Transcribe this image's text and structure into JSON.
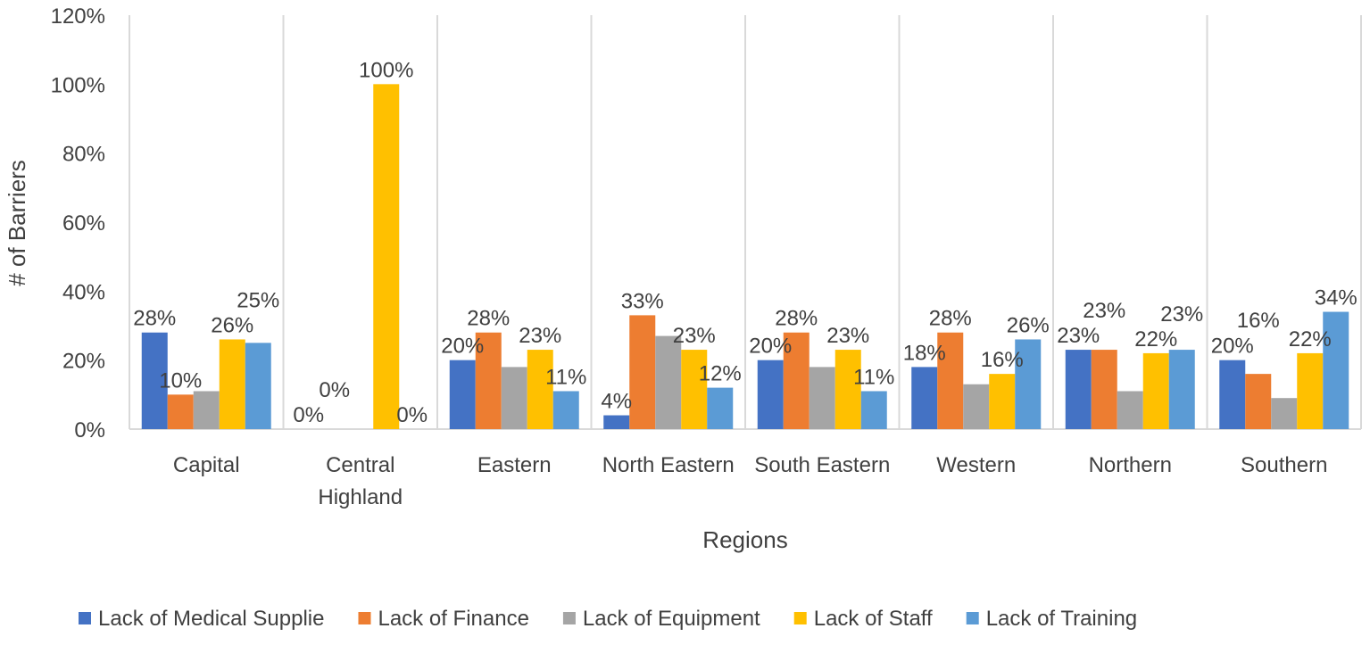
{
  "chart_data": {
    "type": "bar",
    "title": "",
    "xlabel": "Regions",
    "ylabel": "# of Barriers",
    "ylim": [
      0,
      120
    ],
    "yticks": [
      "0%",
      "20%",
      "40%",
      "60%",
      "80%",
      "100%",
      "120%"
    ],
    "grid": "vertical category separators",
    "legend_position": "bottom",
    "categories": [
      "Capital",
      "Central Highland",
      "Eastern",
      "North Eastern",
      "South Eastern",
      "Western",
      "Northern",
      "Southern"
    ],
    "series": [
      {
        "name": "Lack of Medical Supplie",
        "color": "#4472C4",
        "values": [
          28,
          0,
          20,
          4,
          20,
          18,
          23,
          20
        ],
        "labels": [
          "28%",
          "0%",
          "20%",
          "4%",
          "20%",
          "18%",
          "23%",
          "20%"
        ]
      },
      {
        "name": "Lack of Finance",
        "color": "#ED7D31",
        "values": [
          10,
          0,
          28,
          33,
          28,
          28,
          23,
          16
        ],
        "labels": [
          "10%",
          "0%",
          "28%",
          "33%",
          "28%",
          "28%",
          "23%",
          "16%"
        ]
      },
      {
        "name": "Lack of Equipment",
        "color": "#A5A5A5",
        "values": [
          11,
          0,
          18,
          27,
          18,
          13,
          11,
          9
        ],
        "labels": [
          null,
          null,
          null,
          null,
          null,
          null,
          null,
          null
        ]
      },
      {
        "name": "Lack of Staff",
        "color": "#FFC000",
        "values": [
          26,
          100,
          23,
          23,
          23,
          16,
          22,
          22
        ],
        "labels": [
          "26%",
          "100%",
          "23%",
          "23%",
          "23%",
          "16%",
          "22%",
          "22%"
        ]
      },
      {
        "name": "Lack of Training",
        "color": "#5B9BD5",
        "values": [
          25,
          0,
          11,
          12,
          11,
          26,
          23,
          34
        ],
        "labels": [
          "25%",
          "0%",
          "11%",
          "12%",
          "11%",
          "26%",
          "23%",
          "34%"
        ]
      }
    ]
  }
}
